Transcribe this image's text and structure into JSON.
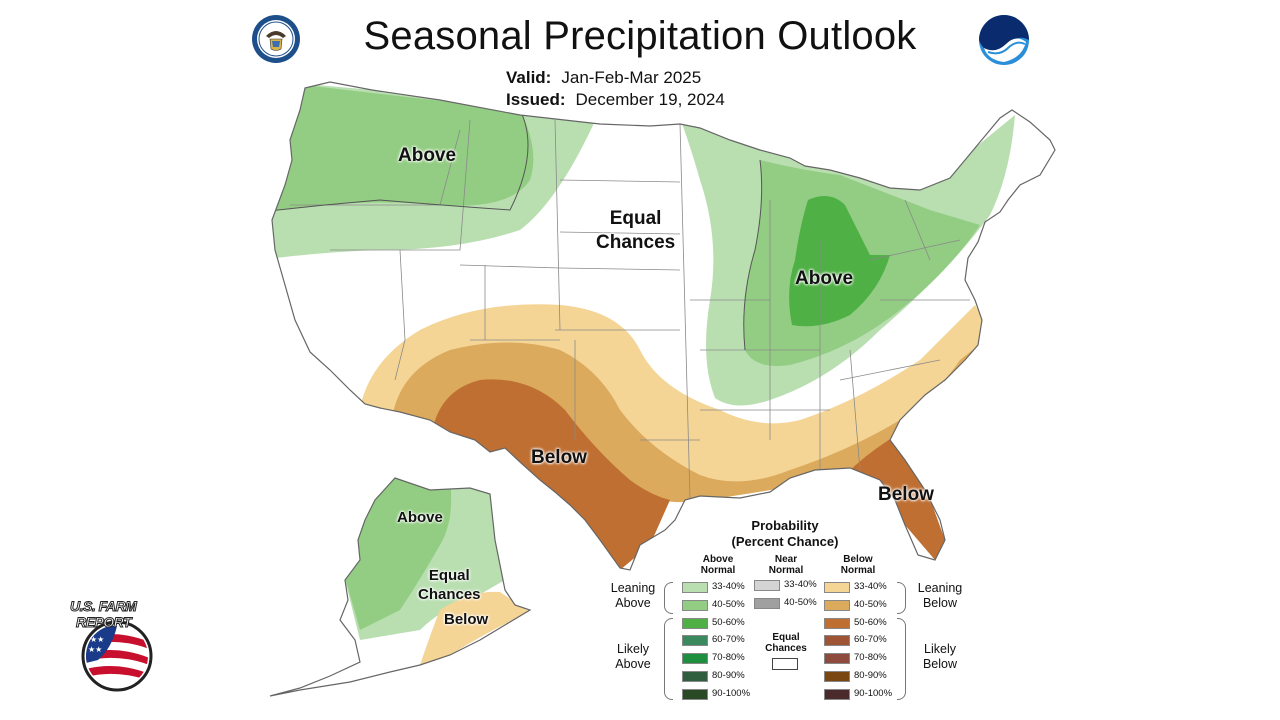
{
  "header": {
    "title": "Seasonal Precipitation Outlook",
    "valid_key": "Valid:",
    "valid_value": "Jan-Feb-Mar 2025",
    "issued_key": "Issued:",
    "issued_value": "December 19, 2024"
  },
  "map_labels": {
    "northwest": "Above",
    "center_line1": "Equal",
    "center_line2": "Chances",
    "great_lakes": "Above",
    "southwest": "Below",
    "florida": "Below",
    "alaska_north": "Above",
    "alaska_mid_line1": "Equal",
    "alaska_mid_line2": "Chances",
    "alaska_south": "Below"
  },
  "legend": {
    "title_line1": "Probability",
    "title_line2": "(Percent Chance)",
    "above_head_line1": "Above",
    "above_head_line2": "Normal",
    "near_head_line1": "Near",
    "near_head_line2": "Normal",
    "below_head_line1": "Below",
    "below_head_line2": "Normal",
    "leaning_above_line1": "Leaning",
    "leaning_above_line2": "Above",
    "likely_above_line1": "Likely",
    "likely_above_line2": "Above",
    "leaning_below_line1": "Leaning",
    "leaning_below_line2": "Below",
    "likely_below_line1": "Likely",
    "likely_below_line2": "Below",
    "equal_line1": "Equal",
    "equal_line2": "Chances",
    "above_bins": [
      {
        "label": "33-40%",
        "color": "#b9dfb1"
      },
      {
        "label": "40-50%",
        "color": "#93cd83"
      },
      {
        "label": "50-60%",
        "color": "#4fb045"
      },
      {
        "label": "60-70%",
        "color": "#3a8a5e"
      },
      {
        "label": "70-80%",
        "color": "#1e8f3e"
      },
      {
        "label": "80-90%",
        "color": "#2f5f3f"
      },
      {
        "label": "90-100%",
        "color": "#2a4a25"
      }
    ],
    "near_bins": [
      {
        "label": "33-40%",
        "color": "#d4d4d4"
      },
      {
        "label": "40-50%",
        "color": "#a0a0a0"
      }
    ],
    "below_bins": [
      {
        "label": "33-40%",
        "color": "#f4d596"
      },
      {
        "label": "40-50%",
        "color": "#dcaa5c"
      },
      {
        "label": "50-60%",
        "color": "#bf6f32"
      },
      {
        "label": "60-70%",
        "color": "#9e5535"
      },
      {
        "label": "70-80%",
        "color": "#8e4a3c"
      },
      {
        "label": "80-90%",
        "color": "#7a4713"
      },
      {
        "label": "90-100%",
        "color": "#4a2a2a"
      }
    ]
  },
  "logos": {
    "left": "doc-seal-icon",
    "right": "noaa-logo-icon",
    "watermark_line1": "U.S. FARM",
    "watermark_line2": "REPORT"
  },
  "colors": {
    "above_33": "#b9dfb1",
    "above_40": "#93cd83",
    "above_50": "#4fb045",
    "below_33": "#f4d596",
    "below_40": "#dcaa5c",
    "below_50": "#bf6f32",
    "boundary": "#666666"
  }
}
